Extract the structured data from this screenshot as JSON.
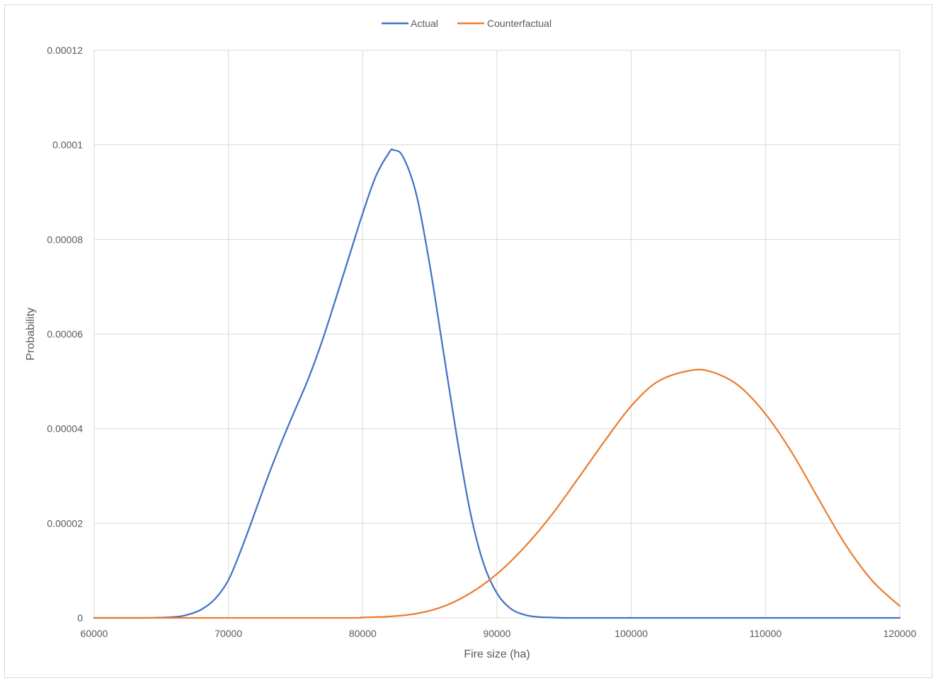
{
  "chart_data": {
    "type": "line",
    "title": "",
    "xlabel": "Fire size (ha)",
    "ylabel": "Probability",
    "xlim": [
      60000,
      120000
    ],
    "ylim": [
      0,
      0.00012
    ],
    "xticks": [
      "60000",
      "70000",
      "80000",
      "90000",
      "100000",
      "110000",
      "120000"
    ],
    "yticks": [
      "0",
      "0.00002",
      "0.00004",
      "0.00006",
      "0.00008",
      "0.0001",
      "0.00012"
    ],
    "grid": true,
    "legend_position": "top",
    "series": [
      {
        "name": "Actual",
        "color": "#4472c4",
        "x": [
          60000,
          64000,
          66000,
          67000,
          68000,
          69000,
          70000,
          71000,
          72000,
          73000,
          74000,
          75000,
          76000,
          77000,
          78000,
          79000,
          80000,
          81000,
          82000,
          82300,
          83000,
          84000,
          85000,
          86000,
          87000,
          88000,
          89000,
          90000,
          91000,
          92000,
          93000,
          94000,
          95000,
          96000,
          100000,
          110000,
          120000
        ],
        "y": [
          0,
          0,
          2e-07,
          7e-07,
          1.8e-06,
          4e-06,
          8e-06,
          1.48e-05,
          2.25e-05,
          3.03e-05,
          3.75e-05,
          4.42e-05,
          5.09e-05,
          5.87e-05,
          6.75e-05,
          7.65e-05,
          8.55e-05,
          9.35e-05,
          9.85e-05,
          9.89e-05,
          9.75e-05,
          8.95e-05,
          7.45e-05,
          5.65e-05,
          3.85e-05,
          2.25e-05,
          1.15e-05,
          5.2e-06,
          2e-06,
          7e-07,
          2e-07,
          1e-07,
          0,
          0,
          0,
          0,
          0
        ]
      },
      {
        "name": "Counterfactual",
        "color": "#ed7d31",
        "x": [
          60000,
          78000,
          80000,
          82000,
          84000,
          86000,
          88000,
          90000,
          92000,
          94000,
          96000,
          98000,
          100000,
          102000,
          104400,
          106000,
          108000,
          110000,
          112000,
          114000,
          116000,
          118000,
          120000
        ],
        "y": [
          0,
          0,
          1e-07,
          3e-07,
          9e-07,
          2.4e-06,
          5.2e-06,
          9.3e-06,
          1.48e-05,
          2.15e-05,
          2.93e-05,
          3.73e-05,
          4.48e-05,
          5e-05,
          5.23e-05,
          5.2e-05,
          4.91e-05,
          4.31e-05,
          3.48e-05,
          2.49e-05,
          1.53e-05,
          7.7e-06,
          2.5e-06
        ]
      }
    ]
  }
}
